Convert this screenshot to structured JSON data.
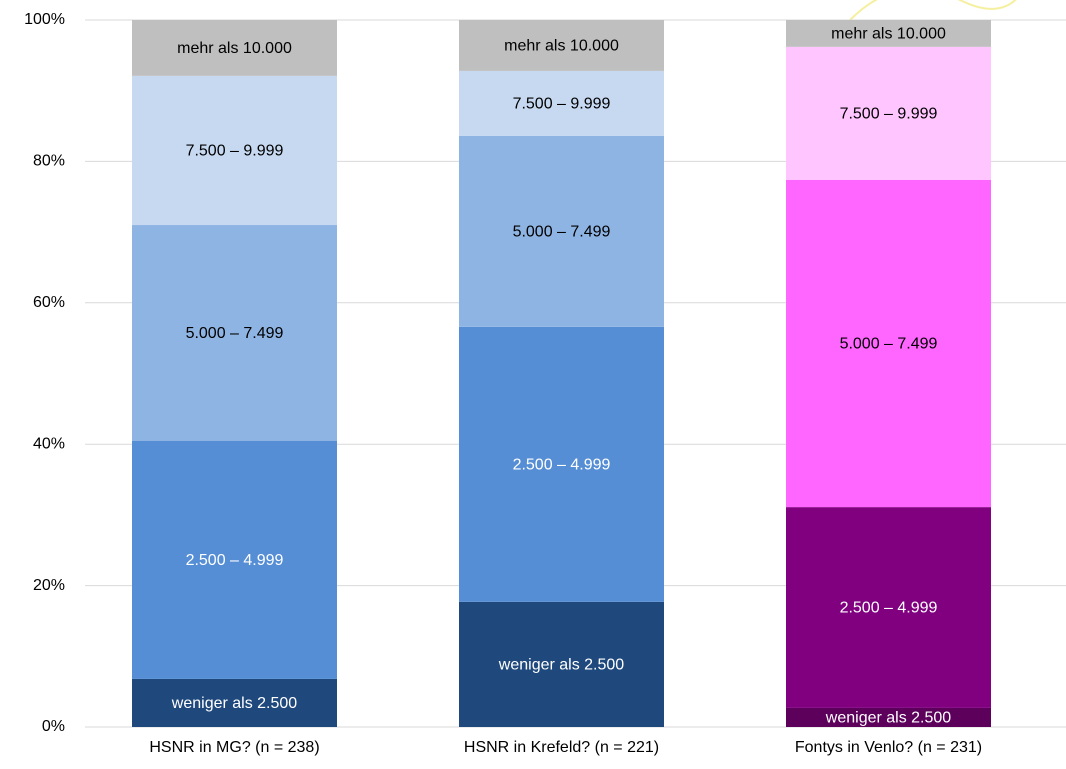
{
  "chart_data": {
    "type": "stacked_bar",
    "categories": [
      "HSNR in MG? (n = 238)",
      "HSNR in Krefeld? (n = 221)",
      "Fontys in Venlo? (n = 231)"
    ],
    "series": [
      {
        "name": "weniger als 2.500",
        "colors": [
          "#1f497d",
          "#1f497d",
          "#5c005c"
        ],
        "values": [
          6.8,
          17.7,
          2.7
        ]
      },
      {
        "name": "2.500 – 4.999",
        "colors": [
          "#558ed5",
          "#558ed5",
          "#800080"
        ],
        "values": [
          33.7,
          38.9,
          28.4
        ]
      },
      {
        "name": "5.000 – 7.499",
        "colors": [
          "#8eb4e3",
          "#8eb4e3",
          "#ff66ff"
        ],
        "values": [
          30.5,
          27.0,
          46.3
        ]
      },
      {
        "name": "7.500 – 9.999",
        "colors": [
          "#c6d9f1",
          "#c6d9f1",
          "#ffc5ff"
        ],
        "values": [
          21.1,
          9.2,
          18.8
        ]
      },
      {
        "name": "mehr als 10.000",
        "colors": [
          "#bfbfbf",
          "#bfbfbf",
          "#bfbfbf"
        ],
        "values": [
          7.9,
          7.2,
          3.8
        ]
      }
    ],
    "ylim": [
      0,
      100
    ],
    "yticks": [
      {
        "value": 0,
        "label": "0%"
      },
      {
        "value": 20,
        "label": "20%"
      },
      {
        "value": 40,
        "label": "40%"
      },
      {
        "value": 60,
        "label": "60%"
      },
      {
        "value": 80,
        "label": "80%"
      },
      {
        "value": 100,
        "label": "100%"
      }
    ],
    "grid": true
  }
}
